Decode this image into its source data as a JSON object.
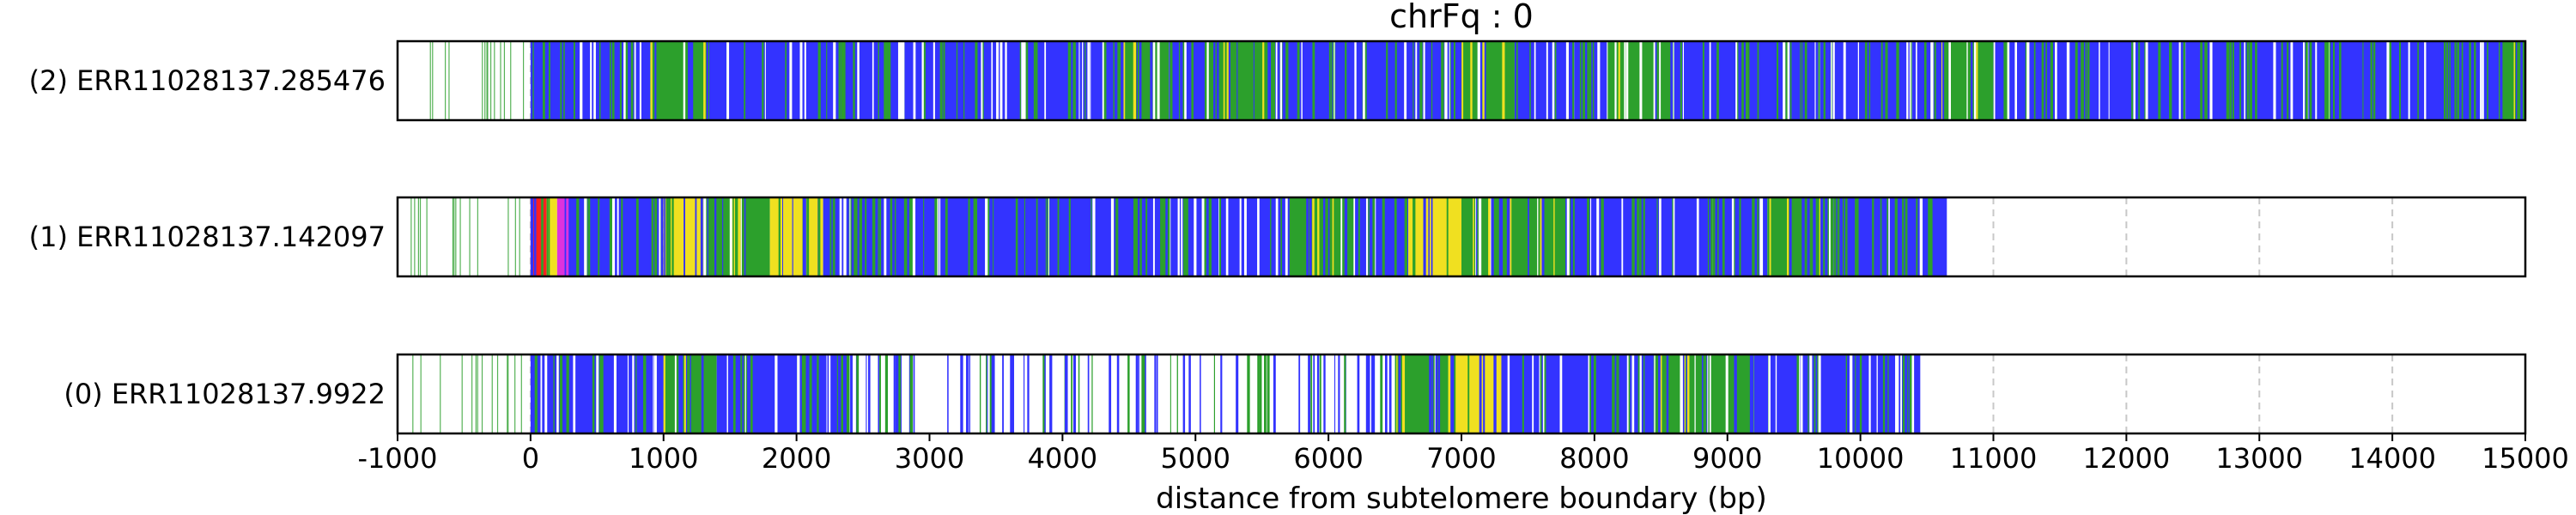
{
  "chart_data": {
    "type": "heatmap",
    "title": "chrFq : 0",
    "xlabel": "distance from subtelomere boundary (bp)",
    "xlim": [
      -1000,
      15000
    ],
    "xticks": [
      -1000,
      0,
      1000,
      2000,
      3000,
      4000,
      5000,
      6000,
      7000,
      8000,
      9000,
      10000,
      11000,
      12000,
      13000,
      14000,
      15000
    ],
    "grid": "vertical dashed at each 1000 bp",
    "colors": {
      "blue": "#3333ff",
      "green": "#2ca02c",
      "yellow": "#f0e020",
      "red": "#ff2020",
      "magenta": "#dd33dd",
      "white": "#ffffff",
      "grid": "#c8c8c8"
    },
    "reads": [
      {
        "label": "(2) ERR11028137.285476",
        "start": -1000,
        "end": 15000,
        "sparse_region": [
          -1000,
          0
        ],
        "segments": [
          [
            0,
            900,
            "blue"
          ],
          [
            900,
            1350,
            "green"
          ],
          [
            1350,
            4400,
            "blue"
          ],
          [
            4400,
            4800,
            "green"
          ],
          [
            4800,
            5100,
            "blue"
          ],
          [
            5100,
            5600,
            "green"
          ],
          [
            5600,
            7000,
            "blue"
          ],
          [
            7000,
            7400,
            "green"
          ],
          [
            7400,
            8100,
            "blue"
          ],
          [
            8100,
            8600,
            "green"
          ],
          [
            8600,
            10600,
            "blue"
          ],
          [
            10600,
            11000,
            "green"
          ],
          [
            11000,
            14800,
            "blue"
          ],
          [
            14800,
            15000,
            "green"
          ]
        ]
      },
      {
        "label": "(1) ERR11028137.142097",
        "start": -1000,
        "end": 10650,
        "sparse_region": [
          -1000,
          0
        ],
        "segments": [
          [
            0,
            120,
            "red"
          ],
          [
            120,
            200,
            "yellow"
          ],
          [
            200,
            300,
            "magenta"
          ],
          [
            300,
            1000,
            "blue"
          ],
          [
            1000,
            1300,
            "yellow"
          ],
          [
            1300,
            1800,
            "green"
          ],
          [
            1800,
            2200,
            "yellow"
          ],
          [
            2200,
            5700,
            "blue"
          ],
          [
            5700,
            6200,
            "green"
          ],
          [
            6200,
            6600,
            "blue"
          ],
          [
            6600,
            7000,
            "yellow"
          ],
          [
            7000,
            7800,
            "green"
          ],
          [
            7800,
            9300,
            "blue"
          ],
          [
            9300,
            9800,
            "green"
          ],
          [
            9800,
            10650,
            "blue"
          ]
        ]
      },
      {
        "label": "(0) ERR11028137.9922",
        "start": -1000,
        "end": 10450,
        "sparse_region": [
          -1000,
          0
        ],
        "segments": [
          [
            0,
            1000,
            "blue"
          ],
          [
            1000,
            1400,
            "green"
          ],
          [
            1400,
            2400,
            "blue"
          ],
          [
            2400,
            6500,
            "white"
          ],
          [
            6500,
            6900,
            "green"
          ],
          [
            6900,
            7300,
            "yellow"
          ],
          [
            7300,
            8500,
            "blue"
          ],
          [
            8500,
            9200,
            "green"
          ],
          [
            9200,
            10450,
            "blue"
          ]
        ]
      }
    ]
  }
}
